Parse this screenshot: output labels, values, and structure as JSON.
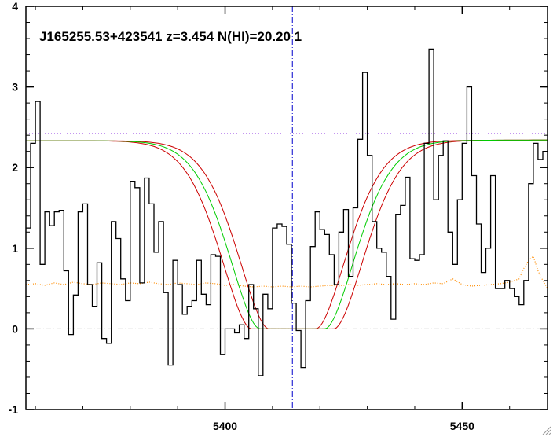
{
  "chart_data": {
    "type": "line",
    "title": "J165255.53+423541 z=3.454 N(HI)=20.20 1",
    "xlabel": "",
    "ylabel": "",
    "xlim": [
      5358,
      5468
    ],
    "ylim": [
      -1,
      4
    ],
    "x_ticks": [
      5400,
      5450
    ],
    "y_ticks": [
      -1,
      0,
      1,
      2,
      3,
      4
    ],
    "grid": false,
    "legend": "none",
    "line_center": 5414.2,
    "continuum_level": 2.42,
    "zero_level": 0,
    "colors": {
      "flux": "#000000",
      "model_best": "#00cc00",
      "model_bounds": "#cc0000",
      "continuum": "#8a2be2",
      "center_line": "#0000cc",
      "zero_line": "#999999",
      "error": "#ff8c00"
    },
    "model": {
      "continuum_left": 2.33,
      "continuum_right": 2.34,
      "edges_best": [
        5407.3,
        5421.1
      ],
      "edges_lower": [
        5405.5,
        5423.0
      ],
      "edges_upper": [
        5409.2,
        5419.2
      ]
    },
    "series": [
      {
        "role": "flux",
        "x": [
          5358,
          5359,
          5360,
          5361,
          5362,
          5363,
          5364,
          5365,
          5366,
          5367,
          5368,
          5369,
          5370,
          5371,
          5372,
          5373,
          5374,
          5375,
          5376,
          5377,
          5378,
          5379,
          5380,
          5381,
          5382,
          5383,
          5384,
          5385,
          5386,
          5387,
          5388,
          5389,
          5390,
          5391,
          5392,
          5393,
          5394,
          5395,
          5396,
          5397,
          5398,
          5399,
          5400,
          5401,
          5402,
          5403,
          5404,
          5405,
          5406,
          5407,
          5408,
          5409,
          5410,
          5411,
          5412,
          5413,
          5414,
          5415,
          5416,
          5417,
          5418,
          5419,
          5420,
          5421,
          5422,
          5423,
          5424,
          5425,
          5426,
          5427,
          5428,
          5429,
          5430,
          5431,
          5432,
          5433,
          5434,
          5435,
          5436,
          5437,
          5438,
          5439,
          5440,
          5441,
          5442,
          5443,
          5444,
          5445,
          5446,
          5447,
          5448,
          5449,
          5450,
          5451,
          5452,
          5453,
          5454,
          5455,
          5456,
          5457,
          5458,
          5459,
          5460,
          5461,
          5462,
          5463,
          5464,
          5465,
          5466,
          5467
        ],
        "y": [
          1.25,
          2.3,
          2.82,
          0.8,
          1.45,
          1.28,
          1.45,
          1.47,
          0.72,
          -0.07,
          0.42,
          1.45,
          1.55,
          0.55,
          0.28,
          0.82,
          -0.12,
          -0.18,
          1.33,
          1.12,
          0.62,
          0.35,
          1.83,
          1.75,
          0.57,
          1.87,
          1.55,
          0.95,
          1.33,
          0.45,
          -0.45,
          0.85,
          0.55,
          0.18,
          0.28,
          0.35,
          0.85,
          0.43,
          0.3,
          0.92,
          0.9,
          -0.32,
          0.0,
          0.0,
          -0.05,
          0.05,
          -0.12,
          0.55,
          0.25,
          -0.58,
          0.43,
          0.25,
          1.25,
          1.3,
          1.27,
          1.05,
          0.32,
          -0.02,
          -0.48,
          0.35,
          1.02,
          1.45,
          1.23,
          1.17,
          0.92,
          0.55,
          1.2,
          1.48,
          0.65,
          1.5,
          2.35,
          3.18,
          2.15,
          1.33,
          1.0,
          0.95,
          0.65,
          0.12,
          1.42,
          1.53,
          1.88,
          0.87,
          0.85,
          0.92,
          2.3,
          3.47,
          1.6,
          2.15,
          2.33,
          1.2,
          0.8,
          1.6,
          2.3,
          3.0,
          1.9,
          1.3,
          0.7,
          1.0,
          1.9,
          0.5,
          0.5,
          0.6,
          0.5,
          0.4,
          0.3,
          0.6,
          1.8,
          2.3,
          2.1,
          2.2
        ]
      },
      {
        "role": "error",
        "x": [
          5358,
          5360,
          5362,
          5364,
          5366,
          5368,
          5370,
          5372,
          5374,
          5376,
          5378,
          5380,
          5382,
          5384,
          5386,
          5388,
          5390,
          5392,
          5394,
          5396,
          5398,
          5400,
          5402,
          5404,
          5406,
          5408,
          5410,
          5412,
          5414,
          5416,
          5418,
          5420,
          5422,
          5424,
          5426,
          5428,
          5430,
          5432,
          5434,
          5436,
          5438,
          5440,
          5442,
          5444,
          5446,
          5448,
          5450,
          5452,
          5454,
          5456,
          5458,
          5460,
          5462,
          5463,
          5464,
          5465,
          5466,
          5467,
          5468
        ],
        "y": [
          0.55,
          0.56,
          0.54,
          0.57,
          0.55,
          0.58,
          0.56,
          0.55,
          0.57,
          0.56,
          0.55,
          0.57,
          0.56,
          0.58,
          0.56,
          0.55,
          0.57,
          0.56,
          0.55,
          0.57,
          0.56,
          0.54,
          0.55,
          0.53,
          0.52,
          0.53,
          0.52,
          0.53,
          0.52,
          0.53,
          0.52,
          0.53,
          0.54,
          0.53,
          0.55,
          0.54,
          0.55,
          0.56,
          0.55,
          0.56,
          0.55,
          0.56,
          0.55,
          0.57,
          0.56,
          0.62,
          0.55,
          0.53,
          0.54,
          0.55,
          0.56,
          0.58,
          0.62,
          0.75,
          0.85,
          0.9,
          0.72,
          0.6,
          0.5
        ]
      }
    ]
  }
}
